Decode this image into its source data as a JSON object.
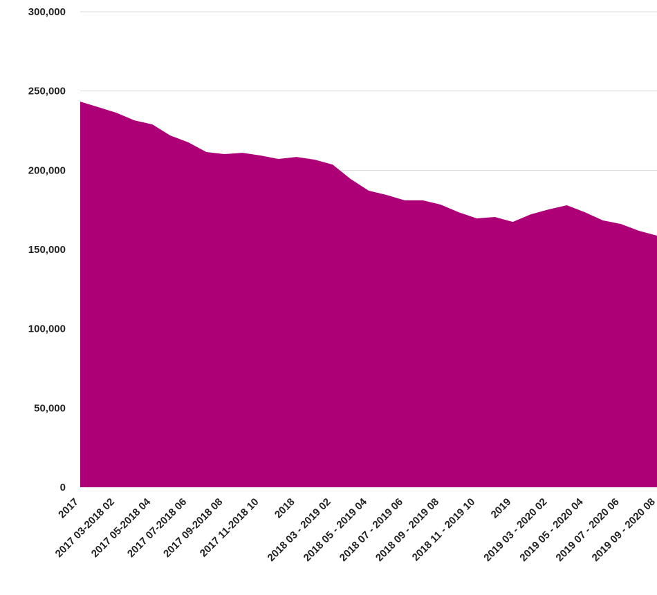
{
  "chart_data": {
    "type": "area",
    "color": "#ad0077",
    "grid": true,
    "categories": [
      "2017",
      null,
      "2017 03-2018 02",
      null,
      "2017 05-2018 04",
      null,
      "2017 07-2018 06",
      null,
      "2017 09-2018 08",
      null,
      "2017 11-2018 10",
      null,
      "2018",
      null,
      "2018 03 - 2019 02",
      null,
      "2018 05 - 2019 04",
      null,
      "2018 07 - 2019 06",
      null,
      "2018 09 - 2019 08",
      null,
      "2018 11 - 2019 10",
      null,
      "2019",
      null,
      "2019 03 - 2020 02",
      null,
      "2019 05 - 2020 04",
      null,
      "2019 07 - 2020 06",
      null,
      "2019 09 - 2020 08"
    ],
    "values": [
      243300,
      239800,
      236300,
      231500,
      228900,
      221900,
      217600,
      211500,
      210200,
      211000,
      209300,
      207100,
      208400,
      206700,
      203600,
      194500,
      187100,
      184400,
      181000,
      181000,
      178300,
      173500,
      169600,
      170500,
      167400,
      172200,
      175300,
      177900,
      173500,
      168300,
      166100,
      161800,
      158700
    ],
    "ylim": [
      0,
      300000
    ],
    "yticks": [
      {
        "value": 0,
        "label": "0"
      },
      {
        "value": 50000,
        "label": "50,000"
      },
      {
        "value": 100000,
        "label": "100,000"
      },
      {
        "value": 150000,
        "label": "150,000"
      },
      {
        "value": 200000,
        "label": "200,000"
      },
      {
        "value": 250000,
        "label": "250,000"
      },
      {
        "value": 300000,
        "label": "300,000"
      }
    ]
  }
}
